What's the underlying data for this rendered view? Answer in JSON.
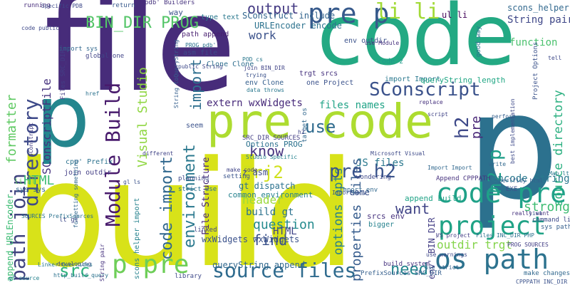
{
  "words": [
    {
      "text": "file",
      "color": "#472c7a"
    },
    {
      "text": "build",
      "color": "#d8e219"
    },
    {
      "text": "code",
      "color": "#23a983"
    },
    {
      "text": "p",
      "color": "#24868e"
    },
    {
      "text": "p",
      "color": "#2c718e"
    },
    {
      "text": "pre code",
      "color": "#addc30"
    },
    {
      "text": "pre p",
      "color": "#375a8c"
    },
    {
      "text": "li li",
      "color": "#a2da37"
    },
    {
      "text": "code pre",
      "color": "#1fa188"
    },
    {
      "text": "source files",
      "color": "#2f6b8e"
    },
    {
      "text": "os path",
      "color": "#2c728e"
    },
    {
      "text": "project",
      "color": "#20a386"
    },
    {
      "text": "SConscript",
      "color": "#3b528b"
    },
    {
      "text": "Module Build",
      "color": "#481a6c"
    },
    {
      "text": "directory",
      "color": "#3e4a89"
    },
    {
      "text": "path join",
      "color": "#40437f"
    },
    {
      "text": "environment",
      "color": "#2a788e"
    },
    {
      "text": "code import",
      "color": "#31688e"
    },
    {
      "text": "pre h2",
      "color": "#3a548c"
    },
    {
      "text": "h2 p",
      "color": "#1f9e89"
    },
    {
      "text": "Prj2",
      "color": "#d0e11c"
    },
    {
      "text": "p pre",
      "color": "#6ece58"
    },
    {
      "text": "src",
      "color": "#2eb37c"
    },
    {
      "text": "need",
      "color": "#25858e"
    },
    {
      "text": "output",
      "color": "#443a83"
    },
    {
      "text": "BIN_DIR PROG",
      "color": "#54c568"
    },
    {
      "text": "formatter",
      "color": "#5ec962"
    },
    {
      "text": "HTML",
      "color": "#3dbc74"
    },
    {
      "text": "Visual Studio",
      "color": "#90d743"
    },
    {
      "text": "import",
      "color": "#2e6f8e"
    },
    {
      "text": "use",
      "color": "#2f6b8e"
    },
    {
      "text": "know",
      "color": "#46327e"
    },
    {
      "text": "find",
      "color": "#3b528b"
    },
    {
      "text": "want",
      "color": "#414487"
    },
    {
      "text": "outdir trgt",
      "color": "#84d44b"
    },
    {
      "text": "strong",
      "color": "#3fbc73"
    },
    {
      "text": "h2",
      "color": "#3e4989"
    },
    {
      "text": "pre",
      "color": "#482677"
    },
    {
      "text": "question",
      "color": "#238a8d"
    },
    {
      "text": "header",
      "color": "#9bd93c"
    },
    {
      "text": "build gt",
      "color": "#2c728e"
    },
    {
      "text": "HTML",
      "color": "#404588"
    },
    {
      "text": "properties files",
      "color": "#365c8d"
    },
    {
      "text": "options opts",
      "color": "#27808e"
    },
    {
      "text": "SConscriptFile",
      "color": "#46327e"
    },
    {
      "text": "work",
      "color": "#3b528b"
    },
    {
      "text": "JS files",
      "color": "#2a788e"
    },
    {
      "text": "source directory",
      "color": "#29af7f"
    },
    {
      "text": "encode String",
      "color": "#2a788e"
    },
    {
      "text": "extern wxWidgets",
      "color": "#472a7a"
    },
    {
      "text": "files names",
      "color": "#20a386"
    },
    {
      "text": "SConstruct include",
      "color": "#32658e"
    },
    {
      "text": "URLEncoder encode",
      "color": "#2c728e"
    },
    {
      "text": "ul li",
      "color": "#46085c"
    },
    {
      "text": "String pair",
      "color": "#3f4788"
    },
    {
      "text": "scons_helper py",
      "color": "#31688e"
    },
    {
      "text": "function",
      "color": "#4ac16d"
    },
    {
      "text": "Options PROG",
      "color": "#2c728e"
    },
    {
      "text": "File Structure",
      "color": "#482878"
    },
    {
      "text": "wxWidgets wxWidgets",
      "color": "#3b528b"
    },
    {
      "text": "env' BIN_DIR",
      "color": "#433e85"
    },
    {
      "text": "append URLEncoder",
      "color": "#3dbc74"
    },
    {
      "text": "z asm",
      "color": "#3e4a89"
    },
    {
      "text": "gt dispatch",
      "color": "#2c728e"
    },
    {
      "text": "common environment",
      "color": "#26828e"
    },
    {
      "text": "queryString append",
      "color": "#31688e"
    },
    {
      "text": "come",
      "color": "#3b528b"
    },
    {
      "text": "append build",
      "color": "#20a386"
    },
    {
      "text": "running",
      "color": "#472d7b"
    },
    {
      "text": "Specific PDB",
      "color": "#3e4989"
    },
    {
      "text": "return",
      "color": "#38598c"
    },
    {
      "text": "pdb' Builders",
      "color": "#46327e"
    },
    {
      "text": "way",
      "color": "#3b528b"
    },
    {
      "text": "type text",
      "color": "#2a788e"
    },
    {
      "text": "path append",
      "color": "#481f70"
    },
    {
      "text": "env outdir",
      "color": "#3b528b"
    },
    {
      "text": "code z",
      "color": "#1f9a8a"
    },
    {
      "text": "import Import",
      "color": "#2a788e"
    },
    {
      "text": "queryString length",
      "color": "#22a785"
    },
    {
      "text": "scons helper import",
      "color": "#26828e"
    },
    {
      "text": "global one",
      "color": "#414487"
    },
    {
      "text": "asm file",
      "color": "#3e4a89"
    },
    {
      "text": "Clone Clone",
      "color": "#2e6e8e"
    },
    {
      "text": "trgt srcs",
      "color": "#46327e"
    },
    {
      "text": "one Project",
      "color": "#3b528b"
    },
    {
      "text": "env Clone",
      "color": "#355f8d"
    },
    {
      "text": "data throws",
      "color": "#2a788e"
    },
    {
      "text": "cpp' Prefix",
      "color": "#2c728e"
    },
    {
      "text": "join outdir",
      "color": "#433e85"
    },
    {
      "text": "lt gt",
      "color": "#3e4989"
    },
    {
      "text": "li ul",
      "color": "#5ec962"
    },
    {
      "text": "sys sys",
      "color": "#31688e"
    },
    {
      "text": "planning",
      "color": "#3e4a89"
    },
    {
      "text": "setting",
      "color": "#3a548c"
    },
    {
      "text": "strict use",
      "color": "#2c728e"
    },
    {
      "text": "srcs env",
      "color": "#46327e"
    },
    {
      "text": "bigger",
      "color": "#26828e"
    },
    {
      "text": "linked",
      "color": "#414487"
    },
    {
      "text": "build system",
      "color": "#46327e"
    },
    {
      "text": "PrefixSources SRC_DIR",
      "color": "#355f8d"
    },
    {
      "text": "SOURCES PrefixSources",
      "color": "#2c728e"
    },
    {
      "text": "seem",
      "color": "#3b528b"
    },
    {
      "text": "Import env",
      "color": "#31688e"
    },
    {
      "text": "SRC_DIR SOURCES",
      "color": "#433e85"
    },
    {
      "text": "Studio Specific",
      "color": "#26828e"
    },
    {
      "text": "make code",
      "color": "#414487"
    },
    {
      "text": "wondering",
      "color": "#3e4989"
    },
    {
      "text": "Append CPPPATH",
      "color": "#46327e"
    },
    {
      "text": "EXE",
      "color": "#3b528b"
    },
    {
      "text": "Files INC_DIR PHP",
      "color": "#2c728e"
    },
    {
      "text": "sys path",
      "color": "#355f8d"
    },
    {
      "text": "command line",
      "color": "#3e4a89"
    },
    {
      "text": "PROG SOURCES",
      "color": "#433e85"
    },
    {
      "text": "CPPPATH INC_DIR",
      "color": "#3b528b"
    },
    {
      "text": "make changes",
      "color": "#31688e"
    },
    {
      "text": "gt source",
      "color": "#26828e"
    },
    {
      "text": "http_build_query",
      "color": "#2c728e"
    },
    {
      "text": "library",
      "color": "#3e4989"
    },
    {
      "text": "developing",
      "color": "#414487"
    },
    {
      "text": "Linker Overrides",
      "color": "#2a788e"
    },
    {
      "text": "String pair",
      "color": "#46327e"
    },
    {
      "text": "Project Options",
      "color": "#3b528b"
    },
    {
      "text": "import sys",
      "color": "#31688e"
    },
    {
      "text": "Files SRC_DIR",
      "color": "#433e85"
    },
    {
      "text": "code public",
      "color": "#3e4989"
    },
    {
      "text": "String toQueryString",
      "color": "#355f8d"
    },
    {
      "text": "join BIN_DIR",
      "color": "#414487"
    },
    {
      "text": "trying",
      "color": "#3b528b"
    },
    {
      "text": "PROG pdb'",
      "color": "#2c728e"
    },
    {
      "text": "target os",
      "color": "#31688e"
    },
    {
      "text": "Microsoft Visual",
      "color": "#3e4a89"
    },
    {
      "text": "use Module",
      "color": "#46327e"
    },
    {
      "text": "good way",
      "color": "#2c728e"
    },
    {
      "text": "tell",
      "color": "#3e4989"
    },
    {
      "text": "perform",
      "color": "#355f8d"
    },
    {
      "text": "script",
      "color": "#414487"
    },
    {
      "text": "write",
      "color": "#31688e"
    },
    {
      "text": "really want",
      "color": "#46327e"
    },
    {
      "text": "list",
      "color": "#3b528b"
    },
    {
      "text": "Map lt",
      "color": "#2a788e"
    },
    {
      "text": "VS project",
      "color": "#433e85"
    },
    {
      "text": "use warnings",
      "color": "#3e4989"
    },
    {
      "text": "use strict",
      "color": "#355f8d"
    },
    {
      "text": "forgetting something",
      "color": "#31688e"
    },
    {
      "text": "gl ls",
      "color": "#3b528b"
    },
    {
      "text": "different",
      "color": "#414487"
    },
    {
      "text": "href",
      "color": "#2c728e"
    },
    {
      "text": "replace",
      "color": "#46327e"
    },
    {
      "text": "best implementation",
      "color": "#3e4a89"
    },
    {
      "text": "perlfidy html",
      "color": "#355f8d"
    },
    {
      "text": "Import Import",
      "color": "#31688e"
    },
    {
      "text": "Import env'",
      "color": "#3b528b"
    },
    {
      "text": "SConstript",
      "color": "#433e85"
    },
    {
      "text": "POD cs",
      "color": "#2a788e"
    },
    {
      "text": "h2",
      "color": "#414487"
    },
    {
      "text": "public String",
      "color": "#3e4989"
    }
  ]
}
